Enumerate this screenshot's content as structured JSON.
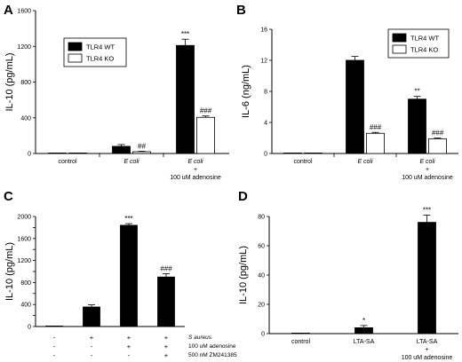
{
  "chart_data": [
    {
      "id": "A",
      "type": "bar",
      "panel_label": "A",
      "ylabel": "IL-10 (pg/mL)",
      "ylim": [
        0,
        1600
      ],
      "yticks": [
        0,
        400,
        800,
        1200,
        1600
      ],
      "legend": {
        "placement": "top-left",
        "entries": [
          "TLR4 WT",
          "TLR4 KO"
        ]
      },
      "categories": [
        {
          "lines": [
            "control"
          ],
          "italic": [
            false
          ]
        },
        {
          "lines": [
            "E coli"
          ],
          "italic": [
            true
          ]
        },
        {
          "lines": [
            "E coli",
            "+",
            "100 uM adenosine"
          ],
          "italic": [
            true,
            false,
            false
          ]
        }
      ],
      "series": [
        {
          "name": "TLR4 WT",
          "fill": "#000000",
          "values": [
            0,
            80,
            1210
          ],
          "errors": [
            0,
            20,
            70
          ],
          "labels": [
            "",
            "",
            "***"
          ]
        },
        {
          "name": "TLR4 KO",
          "fill": "#ffffff",
          "values": [
            0,
            20,
            405
          ],
          "errors": [
            0,
            5,
            15
          ],
          "labels": [
            "",
            "##",
            "###"
          ]
        }
      ]
    },
    {
      "id": "B",
      "type": "bar",
      "panel_label": "B",
      "ylabel": "IL-6 (ng/mL)",
      "ylim": [
        0,
        16
      ],
      "yticks": [
        0,
        4,
        8,
        12,
        16
      ],
      "legend": {
        "placement": "top-right",
        "entries": [
          "TLR4 WT",
          "TLR4 KO"
        ]
      },
      "categories": [
        {
          "lines": [
            "control"
          ],
          "italic": [
            false
          ]
        },
        {
          "lines": [
            "E coli"
          ],
          "italic": [
            true
          ]
        },
        {
          "lines": [
            "E coli",
            "+",
            "100 uM adenosine"
          ],
          "italic": [
            true,
            false,
            false
          ]
        }
      ],
      "series": [
        {
          "name": "TLR4 WT",
          "fill": "#000000",
          "values": [
            0,
            12.0,
            7.0
          ],
          "errors": [
            0,
            0.5,
            0.35
          ],
          "labels": [
            "",
            "",
            "**"
          ]
        },
        {
          "name": "TLR4 KO",
          "fill": "#ffffff",
          "values": [
            0,
            2.6,
            1.9
          ],
          "errors": [
            0,
            0.12,
            0.1
          ],
          "labels": [
            "",
            "###",
            "###"
          ]
        }
      ]
    },
    {
      "id": "C",
      "type": "bar",
      "panel_label": "C",
      "ylabel": "IL-10 (pg/mL)",
      "ylim": [
        0,
        2000
      ],
      "yticks": [
        0,
        200,
        400,
        600,
        800,
        1000,
        1200,
        1400,
        1600,
        1800,
        2000
      ],
      "ytick_labels": [
        "0",
        "",
        "400",
        "",
        "800",
        "",
        "1200",
        "",
        "1600",
        "",
        "2000"
      ],
      "series": [
        {
          "name": "",
          "fill": "#000000",
          "values": [
            5,
            355,
            1840,
            900
          ],
          "errors": [
            0,
            40,
            30,
            60
          ],
          "labels": [
            "",
            "",
            "***",
            "###"
          ]
        }
      ],
      "condition_rows": [
        {
          "label": "S aureus",
          "italic": true,
          "signs": [
            "-",
            "+",
            "+",
            "+"
          ]
        },
        {
          "label": "100 uM adenosine",
          "italic": false,
          "signs": [
            "-",
            "-",
            "+",
            "+"
          ]
        },
        {
          "label": "500 nM ZM241385",
          "italic": false,
          "signs": [
            "-",
            "-",
            "-",
            "+"
          ]
        }
      ]
    },
    {
      "id": "D",
      "type": "bar",
      "panel_label": "D",
      "ylabel": "IL-10 (pg/mL)",
      "ylim": [
        0,
        80
      ],
      "yticks": [
        0,
        20,
        40,
        60,
        80
      ],
      "categories": [
        {
          "lines": [
            "control"
          ],
          "italic": [
            false
          ]
        },
        {
          "lines": [
            "LTA-SA"
          ],
          "italic": [
            false
          ]
        },
        {
          "lines": [
            "LTA-SA",
            "+",
            "100 uM adenosine"
          ],
          "italic": [
            false,
            false,
            false
          ]
        }
      ],
      "series": [
        {
          "name": "",
          "fill": "#000000",
          "values": [
            0,
            4,
            76
          ],
          "errors": [
            0,
            1.5,
            5
          ],
          "labels": [
            "",
            "*",
            "***"
          ]
        }
      ]
    }
  ]
}
